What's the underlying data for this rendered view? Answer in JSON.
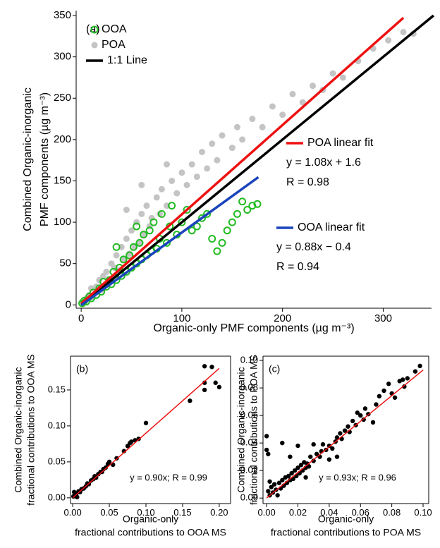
{
  "chart_data": [
    {
      "type": "scatter",
      "label": "(a)",
      "xlabel": [
        "Organic-only PMF components (µg m⁻³)"
      ],
      "ylabel": [
        "Combined Organic-inorganic",
        "PMF components (µg m⁻³)"
      ],
      "xlim": [
        -5,
        348
      ],
      "ylim": [
        -4,
        356
      ],
      "xticks": [
        0,
        100,
        200,
        300
      ],
      "yticks": [
        0,
        50,
        100,
        150,
        200,
        250,
        300,
        350
      ],
      "legend": "upper left",
      "frame": false,
      "series": [
        {
          "name": "OOA",
          "type": "scatter",
          "marker": "open",
          "color": "#22bb22",
          "x": [
            1,
            3,
            5,
            8,
            10,
            12,
            15,
            18,
            20,
            22,
            25,
            28,
            30,
            32,
            35,
            38,
            40,
            42,
            45,
            48,
            50,
            52,
            55,
            58,
            60,
            62,
            65,
            68,
            70,
            72,
            75,
            78,
            80,
            85,
            88,
            90,
            95,
            100,
            105,
            110,
            115,
            120,
            125,
            130,
            135,
            140,
            145,
            150,
            155,
            160,
            165,
            170,
            175,
            35,
            55
          ],
          "y": [
            2,
            5,
            4,
            10,
            8,
            15,
            12,
            20,
            16,
            28,
            22,
            30,
            25,
            40,
            30,
            45,
            35,
            55,
            40,
            60,
            45,
            70,
            50,
            75,
            55,
            85,
            60,
            90,
            65,
            100,
            68,
            80,
            110,
            75,
            95,
            120,
            85,
            100,
            115,
            90,
            95,
            105,
            110,
            80,
            65,
            75,
            90,
            100,
            110,
            125,
            115,
            120,
            122,
            70,
            95
          ]
        },
        {
          "name": "POA",
          "type": "scatter",
          "marker": "filled",
          "color": "#c4c4c4",
          "x": [
            2,
            5,
            8,
            10,
            12,
            15,
            18,
            20,
            22,
            25,
            28,
            30,
            33,
            35,
            38,
            40,
            42,
            45,
            48,
            50,
            53,
            55,
            58,
            60,
            63,
            65,
            68,
            70,
            75,
            78,
            80,
            85,
            90,
            95,
            100,
            105,
            110,
            115,
            120,
            125,
            130,
            135,
            140,
            150,
            155,
            160,
            170,
            180,
            190,
            200,
            210,
            220,
            230,
            240,
            250,
            260,
            275,
            290,
            305,
            320,
            330,
            45,
            60,
            85
          ],
          "y": [
            3,
            8,
            12,
            20,
            10,
            22,
            30,
            18,
            35,
            40,
            28,
            50,
            45,
            60,
            42,
            70,
            55,
            80,
            62,
            90,
            70,
            100,
            75,
            110,
            85,
            120,
            95,
            105,
            130,
            110,
            140,
            120,
            150,
            135,
            160,
            145,
            170,
            155,
            185,
            165,
            195,
            175,
            205,
            190,
            215,
            200,
            225,
            215,
            240,
            230,
            255,
            245,
            265,
            260,
            280,
            275,
            295,
            310,
            320,
            330,
            328,
            115,
            145,
            170
          ]
        },
        {
          "name": "1:1 Line",
          "type": "line",
          "color": "#000000",
          "x": [
            0,
            350
          ],
          "y": [
            0,
            350
          ]
        },
        {
          "name": "POA linear fit",
          "type": "line",
          "color": "#ee1111",
          "x": [
            0,
            320
          ],
          "y": [
            1.6,
            347.2
          ],
          "annotations": [
            "y = 1.08x + 1.6",
            "R = 0.98"
          ]
        },
        {
          "name": "OOA linear fit",
          "type": "line",
          "color": "#1a44bb",
          "x": [
            0,
            176
          ],
          "y": [
            -0.4,
            154.5
          ],
          "annotations": [
            "y = 0.88x − 0.4",
            "R = 0.94"
          ]
        }
      ]
    },
    {
      "type": "scatter",
      "label": "(b)",
      "xlabel": [
        "Organic-only",
        "fractional contributions to OOA MS"
      ],
      "ylabel": [
        "Combined Organic-inorganic",
        "fractional contributions to OOA MS"
      ],
      "xlim": [
        -0.003,
        0.2155
      ],
      "ylim": [
        -0.008,
        0.197
      ],
      "xticks": [
        {
          "value": 0,
          "label": "0.00"
        },
        {
          "value": 0.05,
          "label": "0.05"
        },
        {
          "value": 0.1,
          "label": "0.10"
        },
        {
          "value": 0.15,
          "label": "0.15"
        },
        {
          "value": 0.2,
          "label": "0.20"
        }
      ],
      "yticks": [
        {
          "value": 0,
          "label": "0.00"
        },
        {
          "value": 0.05,
          "label": "0.05"
        },
        {
          "value": 0.1,
          "label": "0.10"
        },
        {
          "value": 0.15,
          "label": "0.15"
        }
      ],
      "frame": true,
      "annotation": "y = 0.90x; R = 0.99",
      "series": [
        {
          "type": "scatter",
          "marker": "filled",
          "color": "#000000",
          "x": [
            0.001,
            0.002,
            0.003,
            0.005,
            0.006,
            0.008,
            0.01,
            0.012,
            0.015,
            0.018,
            0.02,
            0.022,
            0.025,
            0.028,
            0.03,
            0.032,
            0.035,
            0.038,
            0.04,
            0.042,
            0.045,
            0.048,
            0.05,
            0.055,
            0.06,
            0.07,
            0.075,
            0.078,
            0.08,
            0.085,
            0.09,
            0.1,
            0.16,
            0.18,
            0.18,
            0.19,
            0.195,
            0.2,
            0.18
          ],
          "y": [
            0.002,
            0.008,
            0.004,
            0.006,
            0.001,
            0.009,
            0.008,
            0.012,
            0.013,
            0.016,
            0.02,
            0.019,
            0.024,
            0.026,
            0.03,
            0.028,
            0.033,
            0.036,
            0.036,
            0.04,
            0.042,
            0.047,
            0.05,
            0.046,
            0.055,
            0.065,
            0.072,
            0.076,
            0.078,
            0.08,
            0.082,
            0.104,
            0.135,
            0.15,
            0.183,
            0.182,
            0.16,
            0.154,
            0.16
          ]
        },
        {
          "type": "line",
          "color": "#ee1111",
          "x": [
            0,
            0.2
          ],
          "y": [
            0,
            0.18
          ]
        }
      ]
    },
    {
      "type": "scatter",
      "label": "(c)",
      "xlabel": [
        "Organic-only",
        "fractional contributions to POA MS"
      ],
      "ylabel": [
        "Combined Organic-inorganic",
        "fractional contributions to POA MS"
      ],
      "xlim": [
        -0.0023,
        0.1036
      ],
      "ylim": [
        -0.004,
        0.1031
      ],
      "xticks": [
        {
          "value": 0,
          "label": "0.00"
        },
        {
          "value": 0.02,
          "label": "0.02"
        },
        {
          "value": 0.04,
          "label": "0.04"
        },
        {
          "value": 0.06,
          "label": "0.06"
        },
        {
          "value": 0.08,
          "label": "0.08"
        },
        {
          "value": 0.1,
          "label": "0.10"
        }
      ],
      "yticks": [
        {
          "value": 0,
          "label": "0.00"
        },
        {
          "value": 0.02,
          "label": "0.02"
        },
        {
          "value": 0.04,
          "label": "0.04"
        },
        {
          "value": 0.06,
          "label": "0.06"
        },
        {
          "value": 0.08,
          "label": "0.08"
        },
        {
          "value": 0.1,
          "label": "0.10"
        }
      ],
      "frame": true,
      "annotation": "y = 0.93x; R = 0.96",
      "series": [
        {
          "type": "scatter",
          "marker": "filled",
          "color": "#000000",
          "x": [
            0,
            0,
            0.001,
            0.001,
            0.002,
            0.002,
            0.003,
            0.004,
            0.005,
            0.006,
            0.007,
            0.008,
            0.009,
            0.01,
            0.011,
            0.012,
            0.013,
            0.014,
            0.015,
            0.016,
            0.017,
            0.018,
            0.019,
            0.02,
            0.021,
            0.022,
            0.023,
            0.024,
            0.025,
            0.026,
            0.027,
            0.028,
            0.03,
            0.03,
            0.032,
            0.034,
            0.035,
            0.036,
            0.038,
            0.04,
            0.042,
            0.044,
            0.045,
            0.047,
            0.048,
            0.05,
            0.052,
            0.053,
            0.055,
            0.057,
            0.058,
            0.06,
            0.062,
            0.063,
            0.065,
            0.068,
            0.07,
            0.072,
            0.075,
            0.078,
            0.08,
            0.082,
            0.085,
            0.087,
            0.088,
            0.09,
            0.095,
            0.098,
            0.015,
            0.02,
            0.025,
            0.04,
            0.045,
            0.01
          ],
          "y": [
            0.045,
            0.035,
            0.032,
            0.005,
            0.012,
            0.002,
            0.008,
            0.004,
            0.01,
            0.006,
            0.002,
            0.011,
            0.007,
            0.013,
            0.009,
            0.015,
            0.011,
            0.016,
            0.013,
            0.018,
            0.014,
            0.02,
            0.016,
            0.022,
            0.018,
            0.024,
            0.02,
            0.026,
            0.022,
            0.025,
            0.023,
            0.03,
            0.027,
            0.039,
            0.032,
            0.03,
            0.034,
            0.039,
            0.035,
            0.038,
            0.036,
            0.041,
            0.044,
            0.047,
            0.043,
            0.049,
            0.052,
            0.048,
            0.056,
            0.053,
            0.062,
            0.06,
            0.057,
            0.065,
            0.061,
            0.055,
            0.068,
            0.074,
            0.078,
            0.083,
            0.076,
            0.073,
            0.085,
            0.086,
            0.081,
            0.087,
            0.092,
            0.096,
            0.03,
            0.038,
            0.015,
            0.028,
            0.03,
            0.04
          ]
        },
        {
          "type": "line",
          "color": "#ee1111",
          "x": [
            0,
            0.1
          ],
          "y": [
            0,
            0.093
          ]
        }
      ]
    }
  ]
}
